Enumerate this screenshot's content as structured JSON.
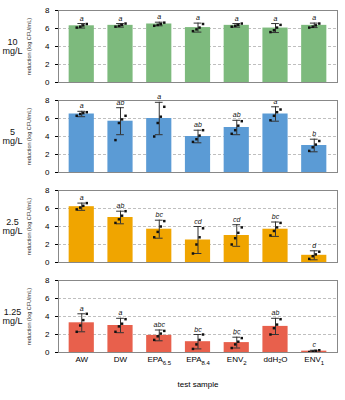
{
  "chart_data": [
    {
      "type": "bar",
      "title": "10\nmg/L",
      "categories": [
        "AW",
        "DW",
        "EPA6.5",
        "EPA8.4",
        "ENV2",
        "ddH₂O",
        "ENV1"
      ],
      "values": [
        6.3,
        6.35,
        6.5,
        6.1,
        6.35,
        6.05,
        6.35
      ],
      "errors": [
        0.25,
        0.2,
        0.2,
        0.5,
        0.2,
        0.5,
        0.25
      ],
      "annotations": [
        "a",
        "a",
        "a",
        "a",
        "a",
        "a",
        "a"
      ],
      "points": [
        [
          6.1,
          6.2,
          6.35,
          6.5
        ],
        [
          6.2,
          6.3,
          6.4,
          6.55
        ],
        [
          6.3,
          6.4,
          6.5,
          6.65
        ],
        [
          5.7,
          5.9,
          6.1,
          6.5
        ],
        [
          6.2,
          6.3,
          6.4,
          6.55
        ],
        [
          5.6,
          5.8,
          6.1,
          6.4
        ],
        [
          6.1,
          6.2,
          6.35,
          6.55
        ]
      ],
      "color": "#7dba7d",
      "ylabel": "reduction (log CFU/mL)",
      "ylim": [
        0,
        8
      ],
      "yticks": [
        0,
        2,
        4,
        6,
        8
      ],
      "grid": true,
      "tick_labels": "y"
    },
    {
      "type": "bar",
      "title": "5\nmg/L",
      "categories": [
        "AW",
        "DW",
        "EPA6.5",
        "EPA8.4",
        "ENV2",
        "ddH₂O",
        "ENV1"
      ],
      "values": [
        6.5,
        5.7,
        6.0,
        4.0,
        5.0,
        6.5,
        3.0
      ],
      "errors": [
        0.3,
        1.5,
        1.8,
        0.7,
        0.8,
        0.8,
        0.7
      ],
      "annotations": [
        "a",
        "ab",
        "a",
        "ab",
        "ab",
        "a",
        "b"
      ],
      "points": [
        [
          6.3,
          6.5,
          6.6,
          6.7
        ],
        [
          3.6,
          5.5,
          5.9,
          6.3
        ],
        [
          4.0,
          5.5,
          6.2,
          7.3
        ],
        [
          3.4,
          3.7,
          4.1,
          4.7
        ],
        [
          4.3,
          4.7,
          5.2,
          5.7
        ],
        [
          5.8,
          6.3,
          6.7,
          7.0
        ],
        [
          2.4,
          2.8,
          3.1,
          3.5
        ]
      ],
      "color": "#5b9bd5",
      "ylabel": "reduction (log CFU/mL)",
      "ylim": [
        0,
        8
      ],
      "yticks": [
        0,
        2,
        4,
        6,
        8
      ],
      "grid": true,
      "tick_labels": "y"
    },
    {
      "type": "bar",
      "title": "2.5\nmg/L",
      "categories": [
        "AW",
        "DW",
        "EPA6.5",
        "EPA8.4",
        "ENV2",
        "ddH₂O",
        "ENV1"
      ],
      "values": [
        6.2,
        5.0,
        3.7,
        2.5,
        3.0,
        3.7,
        0.8
      ],
      "errors": [
        0.4,
        0.7,
        1.0,
        1.5,
        1.2,
        0.8,
        0.5
      ],
      "annotations": [
        "a",
        "ab",
        "bc",
        "cd",
        "cd",
        "bc",
        "d"
      ],
      "points": [
        [
          5.9,
          6.1,
          6.3,
          6.6
        ],
        [
          4.4,
          4.8,
          5.2,
          5.7
        ],
        [
          2.8,
          3.4,
          4.0,
          4.6
        ],
        [
          1.0,
          2.0,
          2.8,
          3.8
        ],
        [
          2.0,
          2.7,
          3.3,
          3.9
        ],
        [
          3.0,
          3.5,
          3.9,
          4.4
        ],
        [
          0.4,
          0.7,
          0.9,
          1.2
        ]
      ],
      "color": "#f0a500",
      "ylabel": "reduction (log CFU/mL)",
      "ylim": [
        0,
        8
      ],
      "yticks": [
        0,
        2,
        4,
        6,
        8
      ],
      "grid": true,
      "tick_labels": "y"
    },
    {
      "type": "bar",
      "title": "1.25\nmg/L",
      "categories": [
        "AW",
        "DW",
        "EPA6.5",
        "EPA8.4",
        "ENV2",
        "ddH₂O",
        "ENV1"
      ],
      "values": [
        3.3,
        3.0,
        1.9,
        1.2,
        1.1,
        2.9,
        0.15
      ],
      "errors": [
        1.0,
        0.8,
        0.6,
        0.8,
        0.6,
        0.9,
        0.1
      ],
      "annotations": [
        "a",
        "a",
        "abc",
        "bc",
        "bc",
        "ab",
        "c"
      ],
      "points": [
        [
          2.3,
          3.0,
          3.6,
          4.3
        ],
        [
          2.3,
          2.9,
          3.2,
          3.7
        ],
        [
          1.4,
          1.8,
          2.1,
          2.4
        ],
        [
          0.4,
          0.9,
          1.4,
          2.0
        ],
        [
          0.5,
          0.9,
          1.2,
          1.6
        ],
        [
          2.0,
          2.7,
          3.1,
          3.7
        ],
        [
          0.05,
          0.1,
          0.18,
          0.25
        ]
      ],
      "color": "#e8604c",
      "ylabel": "reduction (log CFU/mL)",
      "xlabel": "test sample",
      "ylim": [
        0,
        8
      ],
      "yticks": [
        0,
        2,
        4,
        6,
        8
      ],
      "grid": true
    }
  ]
}
